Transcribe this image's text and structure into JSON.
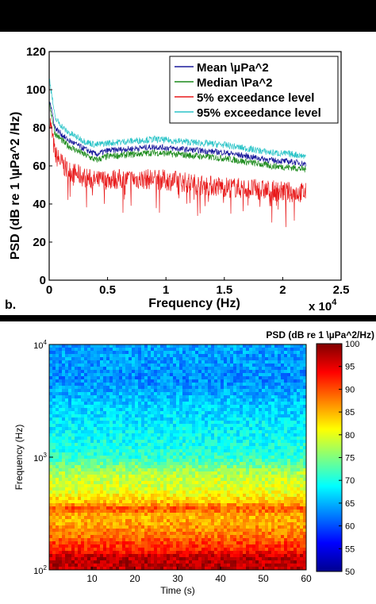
{
  "panel_b_label": "b.",
  "chart_data": [
    {
      "type": "line",
      "xlabel": "Frequency (Hz)",
      "ylabel": "PSD (dB re 1 \\µPa^2 /Hz)",
      "x_exponent_label": "x 10",
      "x_exponent": "4",
      "xlim": [
        0,
        25000
      ],
      "ylim": [
        0,
        120
      ],
      "x_ticks": [
        0,
        5000,
        10000,
        15000,
        20000,
        25000
      ],
      "x_tick_labels": [
        "0",
        "0.5",
        "1",
        "1.5",
        "2",
        "2.5"
      ],
      "y_ticks": [
        0,
        20,
        40,
        60,
        80,
        100,
        120
      ],
      "y_tick_labels": [
        "0",
        "20",
        "40",
        "60",
        "80",
        "100",
        "120"
      ],
      "grid": false,
      "legend_position": "top-right",
      "series": [
        {
          "name": "Mean \\µPa^2",
          "color": "#1a1a9c",
          "x": [
            50,
            500,
            1500,
            3000,
            4000,
            5000,
            7000,
            9000,
            11000,
            13000,
            15000,
            17000,
            19000,
            21000,
            22000
          ],
          "values": [
            95,
            80,
            74,
            69,
            66,
            68,
            69,
            70,
            69,
            68,
            67,
            65,
            63,
            62,
            61
          ]
        },
        {
          "name": "Median \\Pa^2",
          "color": "#1a8a1a",
          "x": [
            50,
            500,
            1500,
            3000,
            4000,
            5000,
            7000,
            9000,
            11000,
            13000,
            15000,
            17000,
            19000,
            21000,
            22000
          ],
          "values": [
            92,
            77,
            71,
            66,
            63,
            65,
            66,
            67,
            66,
            65,
            64,
            62,
            60,
            59,
            58
          ]
        },
        {
          "name": "5% exceedance level",
          "color": "#e8191a",
          "x": [
            50,
            500,
            1500,
            3000,
            4000,
            5000,
            7000,
            9000,
            11000,
            13000,
            15000,
            17000,
            19000,
            21000,
            22000
          ],
          "values": [
            85,
            66,
            58,
            54,
            52,
            53,
            53,
            53,
            52,
            50,
            49,
            48,
            47,
            46,
            46
          ]
        },
        {
          "name": "95% exceedance level",
          "color": "#2cc4c8",
          "x": [
            50,
            500,
            1500,
            3000,
            4000,
            5000,
            7000,
            9000,
            11000,
            13000,
            15000,
            17000,
            19000,
            21000,
            22000
          ],
          "values": [
            105,
            85,
            78,
            73,
            71,
            72,
            73,
            74,
            73,
            72,
            71,
            69,
            67,
            66,
            65
          ]
        }
      ]
    },
    {
      "type": "heatmap",
      "xlabel": "Time (s)",
      "ylabel": "Frequency (Hz)",
      "x_scale": "linear",
      "y_scale": "log",
      "xlim": [
        0,
        60
      ],
      "ylim": [
        100,
        10000
      ],
      "x_ticks": [
        10,
        20,
        30,
        40,
        50,
        60
      ],
      "x_tick_labels": [
        "10",
        "20",
        "30",
        "40",
        "50",
        "60"
      ],
      "y_ticks": [
        100,
        1000,
        10000
      ],
      "y_tick_base": "10",
      "y_tick_exponents": [
        "2",
        "3",
        "4"
      ],
      "colorbar_title": "PSD (dB re 1 \\µPa^2/Hz)",
      "colorbar_range": [
        50,
        100
      ],
      "colorbar_ticks": [
        50,
        55,
        60,
        65,
        70,
        75,
        80,
        85,
        90,
        95,
        100
      ],
      "colorbar_tick_labels": [
        "50",
        "55",
        "60",
        "65",
        "70",
        "75",
        "80",
        "85",
        "90",
        "95",
        "100"
      ],
      "colormap": "jet",
      "profile_frequency_hz": [
        100,
        130,
        150,
        170,
        200,
        250,
        300,
        350,
        400,
        500,
        600,
        700,
        1000,
        1500,
        2000,
        3000,
        5000,
        7000,
        10000
      ],
      "profile_level_db": [
        97,
        97,
        92,
        91,
        88,
        86,
        85,
        90,
        84,
        80,
        79,
        78,
        71,
        69,
        68,
        66,
        63,
        64,
        64
      ]
    }
  ]
}
